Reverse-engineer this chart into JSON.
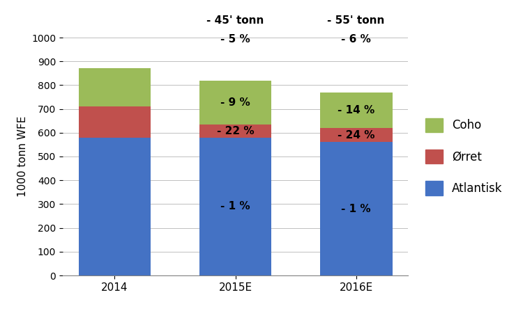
{
  "categories": [
    "2014",
    "2015E",
    "2016E"
  ],
  "atlantisk": [
    580,
    580,
    560
  ],
  "orret": [
    130,
    55,
    60
  ],
  "coho": [
    160,
    185,
    150
  ],
  "color_atlantisk": "#4472C4",
  "color_orret": "#C0504D",
  "color_coho": "#9BBB59",
  "bar_width": 0.6,
  "ylabel": "1000 tonn WFE",
  "ylim": [
    0,
    1000
  ],
  "yticks": [
    0,
    100,
    200,
    300,
    400,
    500,
    600,
    700,
    800,
    900,
    1000
  ],
  "annotations_atlantisk": [
    "",
    "- 1 %",
    "- 1 %"
  ],
  "annotations_orret": [
    "",
    "- 22 %",
    "- 24 %"
  ],
  "annotations_coho": [
    "",
    "- 9 %",
    "- 14 %"
  ],
  "top_line1": [
    "",
    "- 45' tonn",
    "- 55' tonn"
  ],
  "top_line2": [
    "",
    "- 5 %",
    "- 6 %"
  ],
  "legend_labels": [
    "Coho",
    "Ørret",
    "Atlantisk"
  ],
  "legend_colors": [
    "#9BBB59",
    "#C0504D",
    "#4472C4"
  ],
  "background_color": "#FFFFFF",
  "figsize": [
    7.5,
    4.5
  ],
  "dpi": 100
}
